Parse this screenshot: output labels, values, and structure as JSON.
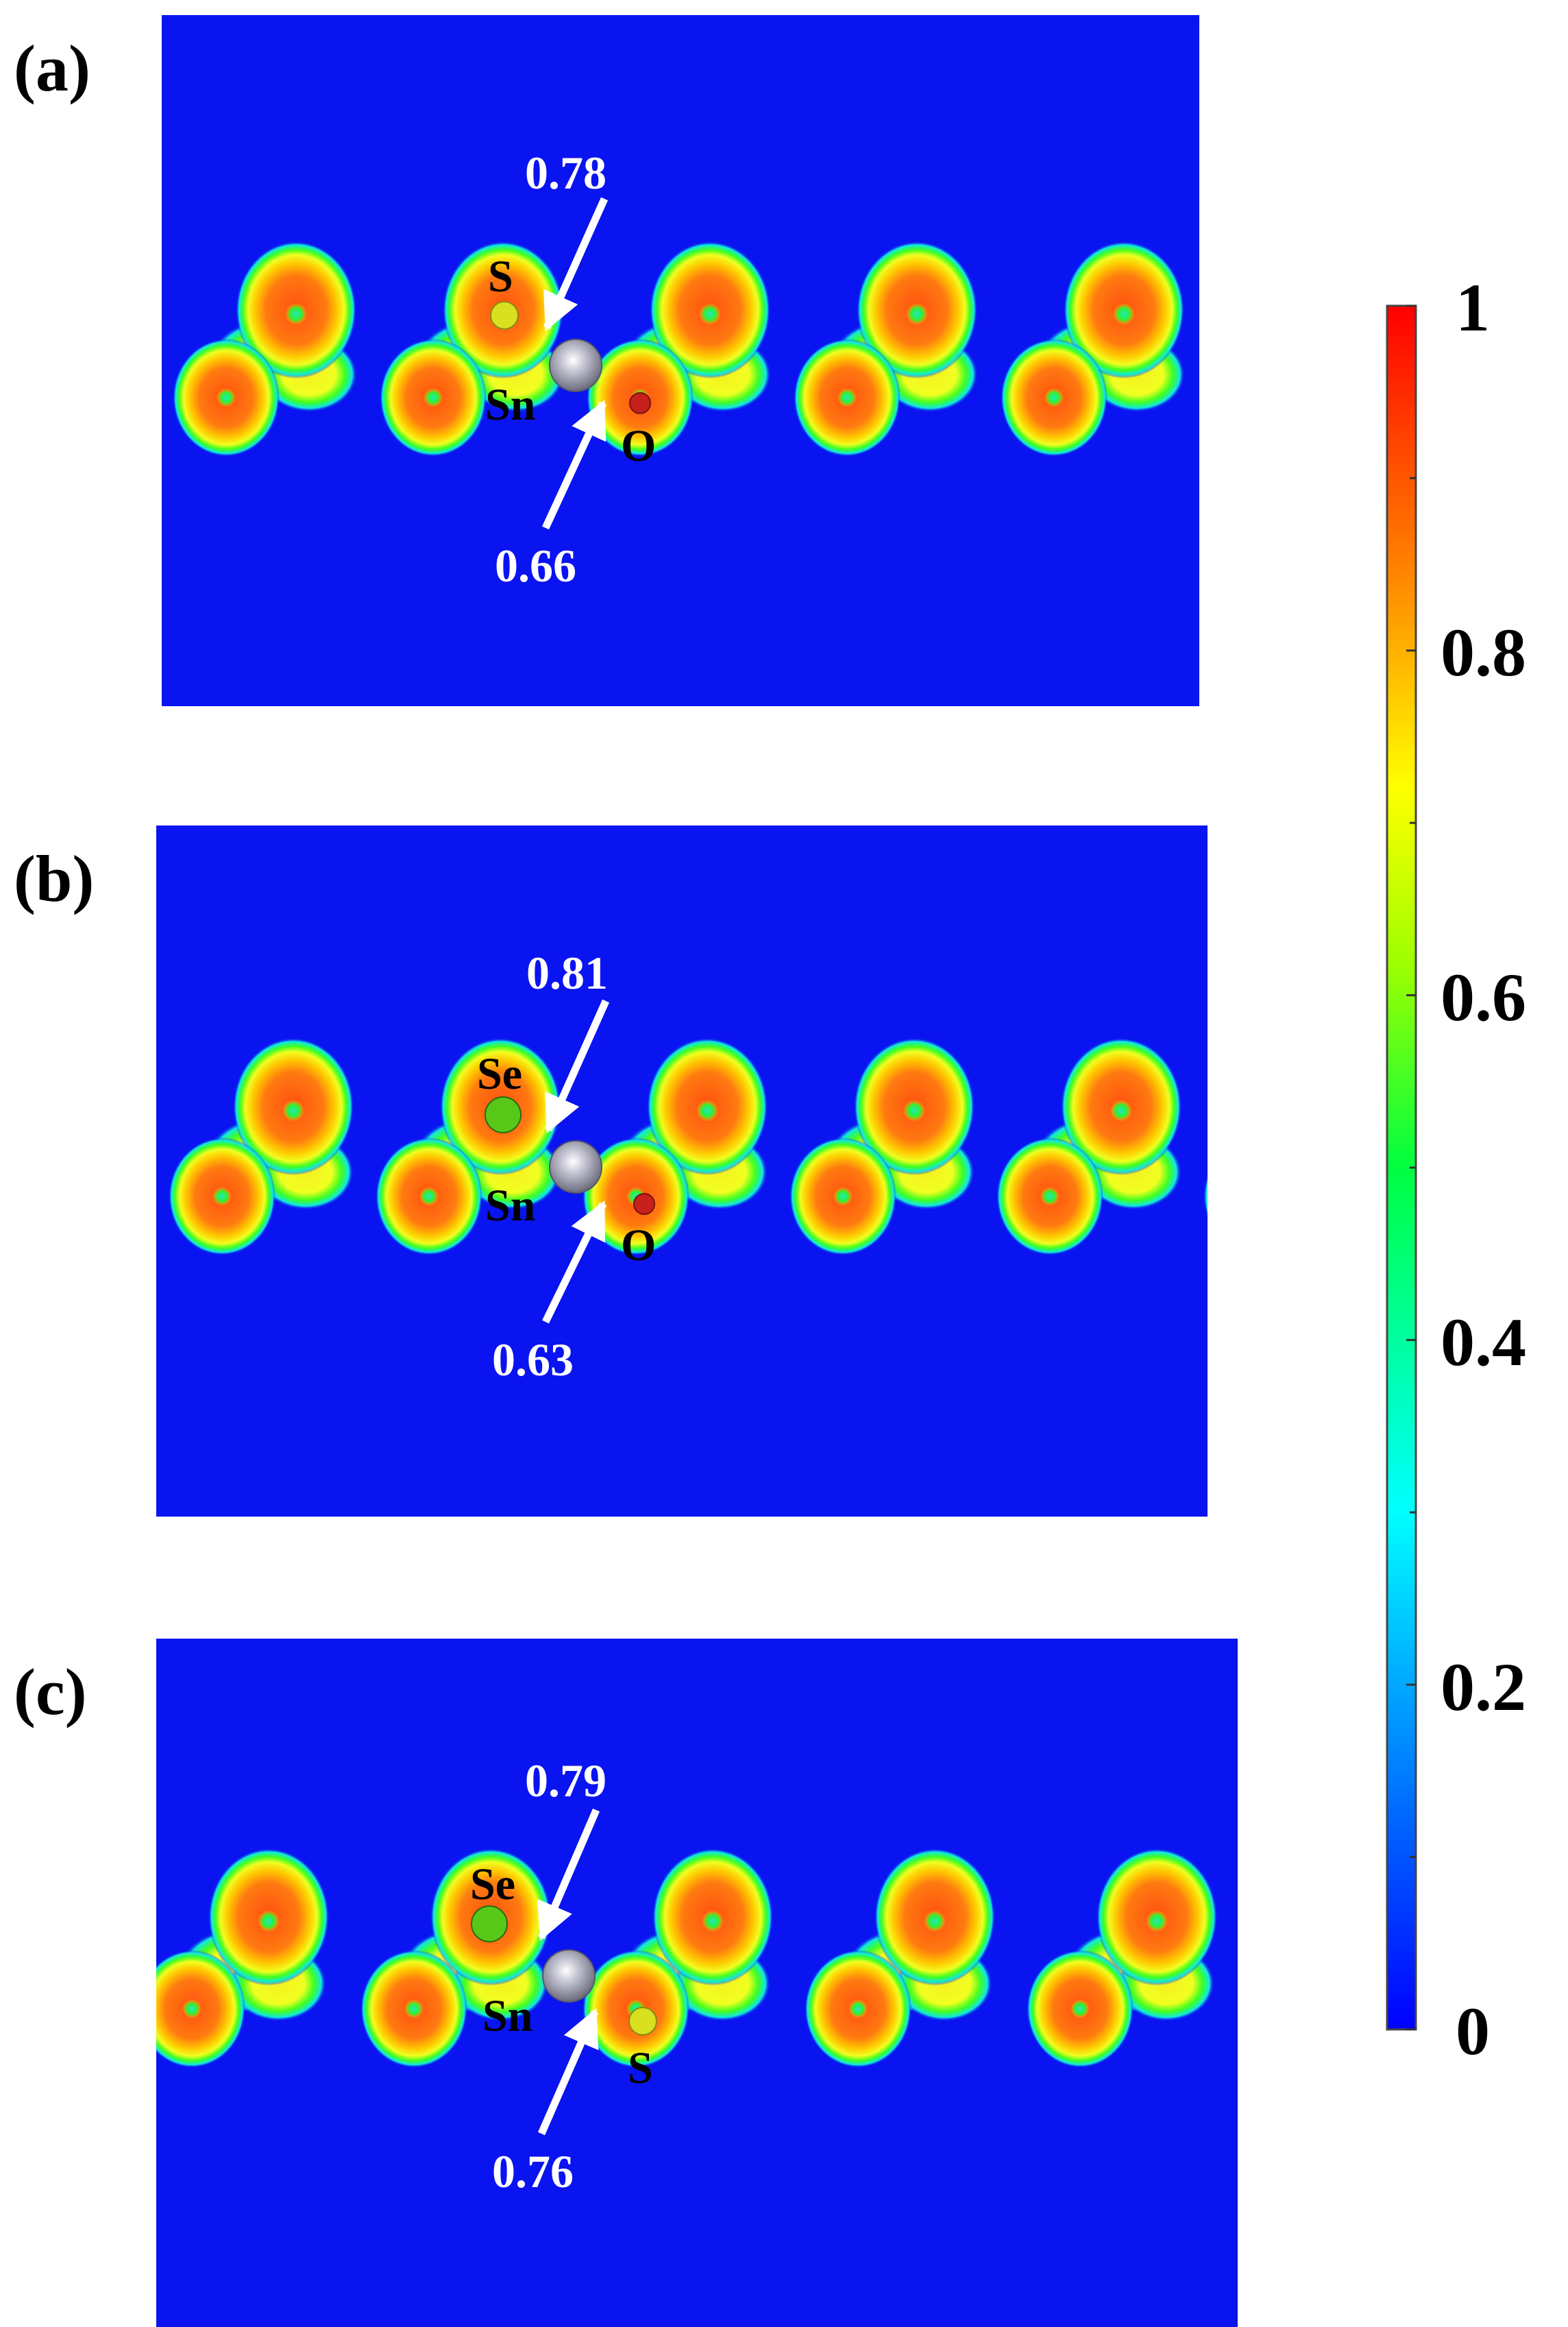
{
  "panels": [
    {
      "letter": "(a)",
      "atoms": {
        "upper": "S",
        "center": "Sn",
        "lower": "O"
      },
      "values": {
        "top": "0.78",
        "bottom": "0.66"
      },
      "colors": {
        "upper": "#d8e020",
        "lower": "#c8201c"
      }
    },
    {
      "letter": "(b)",
      "atoms": {
        "upper": "Se",
        "center": "Sn",
        "lower": "O"
      },
      "values": {
        "top": "0.81",
        "bottom": "0.63"
      },
      "colors": {
        "upper": "#58c818",
        "lower": "#c8201c"
      }
    },
    {
      "letter": "(c)",
      "atoms": {
        "upper": "Se",
        "center": "Sn",
        "lower": "S"
      },
      "values": {
        "top": "0.79",
        "bottom": "0.76"
      },
      "colors": {
        "upper": "#58c818",
        "lower": "#d8e020"
      }
    }
  ],
  "colorbar": {
    "tick_labels": [
      "1",
      "0.8",
      "0.6",
      "0.4",
      "0.2",
      "0"
    ],
    "range": [
      0,
      1
    ]
  },
  "colors": {
    "background": "#0a14f0",
    "sn_atom": "#a7a7b8"
  }
}
